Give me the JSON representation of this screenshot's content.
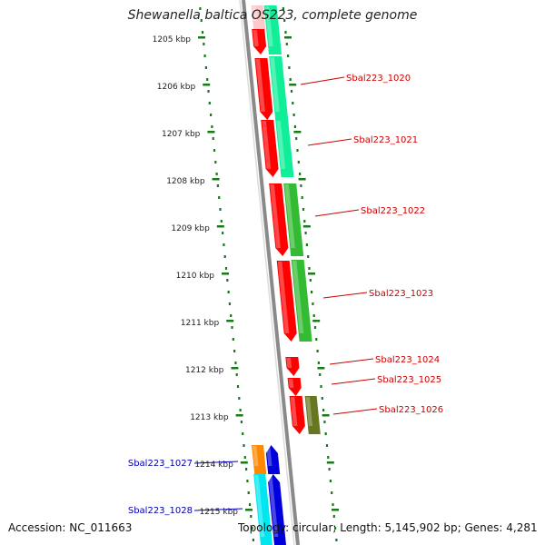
{
  "title": "Shewanella baltica OS223, complete genome",
  "accession_text": "Accession: NC_011663",
  "summary_text": "Topology: circular; Length: 5,145,902 bp; Genes: 4,281",
  "kbp_labels": [
    "1205 kbp",
    "1206 kbp",
    "1207 kbp",
    "1208 kbp",
    "1209 kbp",
    "1210 kbp",
    "1211 kbp",
    "1212 kbp",
    "1213 kbp",
    "1214 kbp",
    "1215 kbp"
  ],
  "genes_right": [
    "Sbal223_1020",
    "Sbal223_1021",
    "Sbal223_1022",
    "Sbal223_1023",
    "Sbal223_1024",
    "Sbal223_1025",
    "Sbal223_1026"
  ],
  "genes_left": [
    "Sbal223_1027",
    "Sbal223_1028"
  ],
  "colors": {
    "backbone": "#8a8a8a",
    "tick": "#1a7a1a",
    "cds": "#ff0000",
    "label_right": "#cc0000",
    "label_left": "#0000b0",
    "aqua": "#11ee99",
    "green": "#33bb33",
    "olive": "#667722",
    "orange": "#ff8800",
    "cyan": "#00e6f0",
    "blue": "#0000dd"
  }
}
